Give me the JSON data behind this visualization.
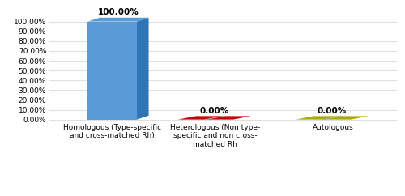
{
  "categories": [
    "Homologous (Type-specific\nand cross-matched Rh)",
    "Heterologous (Non type-\nspecific and non cross-\nmatched Rh",
    "Autologous"
  ],
  "values": [
    100.0,
    0.0,
    0.0
  ],
  "bar_color_front": "#5b9bd5",
  "bar_color_top": "#5b9bd5",
  "bar_color_side": "#2e75b6",
  "flat_colors": [
    "#cc0000",
    "#aaaa00"
  ],
  "value_labels": [
    "100.00%",
    "0.00%",
    "0.00%"
  ],
  "yticks": [
    0,
    10,
    20,
    30,
    40,
    50,
    60,
    70,
    80,
    90,
    100
  ],
  "ytick_labels": [
    "0.00%",
    "10.00%",
    "20.00%",
    "30.00%",
    "40.00%",
    "50.00%",
    "60.00%",
    "70.00%",
    "80.00%",
    "90.00%",
    "100.00%"
  ],
  "background_color": "#ffffff",
  "grid_color": "#d9d9d9",
  "label_fontsize": 6.5,
  "value_fontsize": 7.5,
  "tick_fontsize": 6.5
}
